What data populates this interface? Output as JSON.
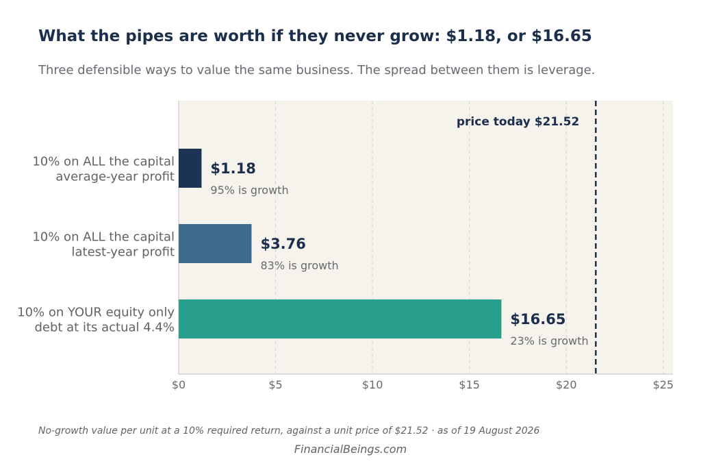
{
  "chart_data": {
    "type": "bar",
    "orientation": "horizontal",
    "title": "What the pipes are worth if they never grow: $1.18, or $16.65",
    "subtitle": "Three defensible ways to value the same business. The spread between them is leverage.",
    "categories": [
      [
        "10% on ALL the capital",
        "average-year profit"
      ],
      [
        "10% on ALL the capital",
        "latest-year profit"
      ],
      [
        "10% on YOUR equity only",
        "debt at its actual 4.4%"
      ]
    ],
    "values": [
      1.18,
      3.76,
      16.65
    ],
    "value_labels": [
      "$1.18",
      "$3.76",
      "$16.65"
    ],
    "sub_labels": [
      "95% is growth",
      "83% is growth",
      "23% is growth"
    ],
    "colors": [
      "#1b3354",
      "#3d6b8e",
      "#29a08e"
    ],
    "xlim": [
      0,
      25.5
    ],
    "xticks": [
      0,
      5,
      10,
      15,
      20,
      25
    ],
    "xtick_labels": [
      "$0",
      "$5",
      "$10",
      "$15",
      "$20",
      "$25"
    ],
    "xlabel": "",
    "ylabel": "",
    "grid": true,
    "reference_line": {
      "value": 21.52,
      "label": "price today  $21.52",
      "style": "dashed",
      "color": "#1b2f4d"
    },
    "plot_background": "#f6f3ec"
  },
  "footnote": "No-growth value per unit at a 10% required return, against a unit price of $21.52  ·  as of 19 August 2026",
  "brand": "FinancialBeings.com"
}
